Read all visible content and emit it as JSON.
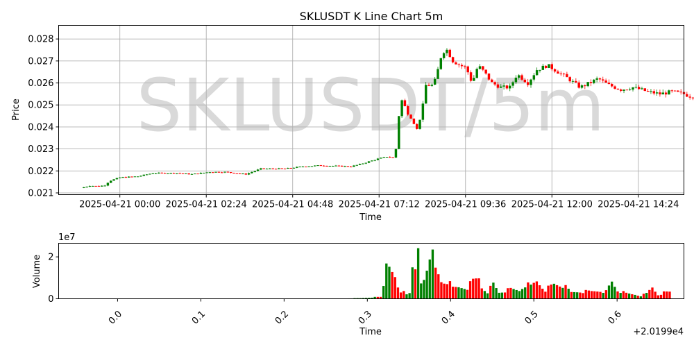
{
  "chart_data": [
    {
      "type": "candlestick",
      "title": "SKLUSDT K Line Chart 5m",
      "watermark": "SKLUSDT/5m",
      "xlabel": "Time",
      "ylabel": "Price",
      "interval": "5m",
      "xlim": [
        "2025-04-20 22:18",
        "2025-04-21 15:40"
      ],
      "ylim": [
        0.02092,
        0.02862
      ],
      "grid": true,
      "x_ticks": [
        "2025-04-21 00:00",
        "2025-04-21 02:24",
        "2025-04-21 04:48",
        "2025-04-21 07:12",
        "2025-04-21 09:36",
        "2025-04-21 12:00",
        "2025-04-21 14:24"
      ],
      "y_ticks": [
        "0.021",
        "0.022",
        "0.023",
        "0.024",
        "0.025",
        "0.026",
        "0.027",
        "0.028"
      ],
      "up_color": "#008000",
      "down_color": "#ff0000",
      "start_time": "2025-04-20 23:00",
      "keypoints": [
        [
          0,
          0.02122
        ],
        [
          15,
          0.02133
        ],
        [
          30,
          0.0213
        ],
        [
          40,
          0.02135
        ],
        [
          48,
          0.02155
        ],
        [
          65,
          0.0217
        ],
        [
          95,
          0.02175
        ],
        [
          120,
          0.0219
        ],
        [
          160,
          0.0219
        ],
        [
          185,
          0.02185
        ],
        [
          215,
          0.02195
        ],
        [
          240,
          0.02195
        ],
        [
          275,
          0.02185
        ],
        [
          300,
          0.0221
        ],
        [
          340,
          0.0221
        ],
        [
          370,
          0.0222
        ],
        [
          400,
          0.02225
        ],
        [
          450,
          0.0222
        ],
        [
          465,
          0.0223
        ],
        [
          495,
          0.02255
        ],
        [
          510,
          0.02265
        ],
        [
          520,
          0.0226
        ],
        [
          525,
          0.023
        ],
        [
          530,
          0.0245
        ],
        [
          535,
          0.0252
        ],
        [
          542,
          0.0248
        ],
        [
          552,
          0.0243
        ],
        [
          560,
          0.0239
        ],
        [
          568,
          0.0246
        ],
        [
          575,
          0.0259
        ],
        [
          588,
          0.0259
        ],
        [
          595,
          0.0266
        ],
        [
          602,
          0.0274
        ],
        [
          610,
          0.0275
        ],
        [
          620,
          0.027
        ],
        [
          632,
          0.0268
        ],
        [
          642,
          0.0267
        ],
        [
          652,
          0.026
        ],
        [
          662,
          0.0268
        ],
        [
          672,
          0.0265
        ],
        [
          685,
          0.026
        ],
        [
          700,
          0.0258
        ],
        [
          715,
          0.0258
        ],
        [
          727,
          0.0264
        ],
        [
          745,
          0.026
        ],
        [
          760,
          0.0266
        ],
        [
          778,
          0.0268
        ],
        [
          795,
          0.0265
        ],
        [
          812,
          0.0262
        ],
        [
          832,
          0.0258
        ],
        [
          848,
          0.026
        ],
        [
          862,
          0.0262
        ],
        [
          880,
          0.0259
        ],
        [
          900,
          0.0257
        ],
        [
          920,
          0.0258
        ],
        [
          945,
          0.0256
        ],
        [
          965,
          0.0255
        ],
        [
          985,
          0.0256
        ],
        [
          1005,
          0.0255
        ],
        [
          1015,
          0.0254
        ]
      ]
    },
    {
      "type": "bar",
      "xlabel": "Time",
      "ylabel": "Volume",
      "scale_label": "1e7",
      "offset_label": "+2.0199e4",
      "x_ticks": [
        "0.0",
        "0.1",
        "0.2",
        "0.3",
        "0.4",
        "0.5",
        "0.6"
      ],
      "y_ticks": [
        "0",
        "2"
      ],
      "ylim": [
        0,
        26500000
      ],
      "xlim": [
        20198.9292,
        20199.6803
      ],
      "volume_profile": [
        [
          0,
          30000
        ],
        [
          100,
          60000
        ],
        [
          300,
          70000
        ],
        [
          440,
          110000
        ],
        [
          480,
          300000
        ],
        [
          500,
          700000
        ],
        [
          518,
          900000
        ],
        [
          524,
          17500000
        ],
        [
          528,
          24500000
        ],
        [
          533,
          11000000
        ],
        [
          540,
          9000000
        ],
        [
          545,
          5000000
        ],
        [
          550,
          3000000
        ],
        [
          555,
          4000000
        ],
        [
          560,
          2500000
        ],
        [
          565,
          3500000
        ],
        [
          570,
          12500000
        ],
        [
          575,
          12500000
        ],
        [
          580,
          23000000
        ],
        [
          584,
          7000000
        ],
        [
          590,
          10000000
        ],
        [
          596,
          17500000
        ],
        [
          600,
          25000000
        ],
        [
          605,
          20000000
        ],
        [
          610,
          13500000
        ],
        [
          616,
          11000000
        ],
        [
          622,
          7000000
        ],
        [
          628,
          9500000
        ],
        [
          640,
          5000000
        ],
        [
          650,
          5500000
        ],
        [
          665,
          5500000
        ],
        [
          675,
          8500000
        ],
        [
          685,
          10000000
        ],
        [
          690,
          5500000
        ],
        [
          700,
          3500000
        ],
        [
          710,
          7000000
        ],
        [
          720,
          3000000
        ],
        [
          740,
          4500000
        ],
        [
          755,
          4000000
        ],
        [
          765,
          7000000
        ],
        [
          775,
          6000000
        ],
        [
          785,
          8500000
        ],
        [
          800,
          4500000
        ],
        [
          815,
          7000000
        ],
        [
          830,
          6500000
        ],
        [
          845,
          3000000
        ],
        [
          860,
          3500000
        ],
        [
          880,
          3500000
        ],
        [
          895,
          4000000
        ],
        [
          905,
          3500000
        ],
        [
          915,
          8000000
        ],
        [
          925,
          4000000
        ],
        [
          940,
          2500000
        ],
        [
          955,
          2000000
        ],
        [
          965,
          1500000
        ],
        [
          975,
          2500000
        ],
        [
          985,
          5500000
        ],
        [
          995,
          2000000
        ],
        [
          1005,
          3000000
        ],
        [
          1020,
          3500000
        ],
        [
          1035,
          2000000
        ],
        [
          1050,
          3500000
        ],
        [
          1060,
          1500000
        ],
        [
          1065,
          800000
        ]
      ]
    }
  ]
}
